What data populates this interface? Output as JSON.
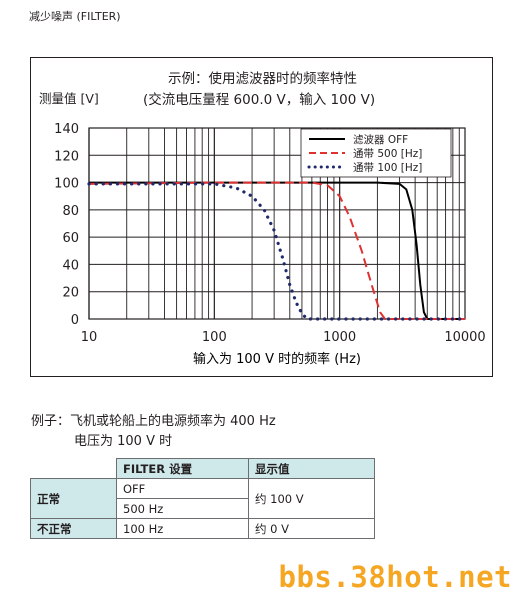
{
  "section_title": "减少噪声 (FILTER)",
  "chart": {
    "title_line1": "示例：使用滤波器时的频率特性",
    "title_line2": "(交流电压量程 600.0 V，输入 100 V)",
    "ylabel": "测量值 [V]",
    "xlabel": "输入为 100 V 时的频率 (Hz)"
  },
  "chart_data": {
    "type": "line",
    "x_scale": "log",
    "xlim": [
      10,
      10000
    ],
    "ylim": [
      0,
      140
    ],
    "x_ticks": [
      10,
      100,
      1000,
      10000
    ],
    "y_ticks": [
      0,
      20,
      40,
      60,
      80,
      100,
      120,
      140
    ],
    "grid": true,
    "legend_position": "top-right",
    "xlabel": "输入为 100 V 时的频率 (Hz)",
    "ylabel": "测量值 [V]",
    "series": [
      {
        "name": "滤波器 OFF",
        "color": "#000000",
        "style": "solid",
        "x": [
          10,
          100,
          1000,
          2000,
          3000,
          3400,
          3800,
          4100,
          4400,
          4700,
          5000,
          10000
        ],
        "y": [
          100,
          100,
          100,
          100,
          99,
          95,
          80,
          55,
          25,
          5,
          0,
          0
        ]
      },
      {
        "name": "通带 500 [Hz]",
        "color": "#e03131",
        "style": "dashed",
        "x": [
          10,
          100,
          400,
          600,
          800,
          1000,
          1200,
          1500,
          1800,
          2100,
          2300,
          10000
        ],
        "y": [
          99,
          100,
          100,
          100,
          98,
          90,
          75,
          50,
          25,
          5,
          0,
          0
        ]
      },
      {
        "name": "通带 100 [Hz]",
        "color": "#1f2a6b",
        "style": "dotted",
        "x": [
          10,
          100,
          150,
          200,
          250,
          300,
          350,
          400,
          450,
          500,
          550,
          10000
        ],
        "y": [
          99,
          99,
          96,
          90,
          80,
          65,
          45,
          25,
          12,
          4,
          0,
          0
        ]
      }
    ]
  },
  "example": {
    "line1": "例子：飞机或轮船上的电源频率为 400 Hz",
    "line2": "电压为 100 V 时"
  },
  "table": {
    "col_filter": "FILTER 设置",
    "col_display": "显示值",
    "normal": "正常",
    "abnormal": "不正常",
    "off": "OFF",
    "f500": "500 Hz",
    "f100": "100 Hz",
    "val_normal": "约 100 V",
    "val_abnormal": "约 0 V"
  },
  "watermark": "bbs.38hot.net"
}
